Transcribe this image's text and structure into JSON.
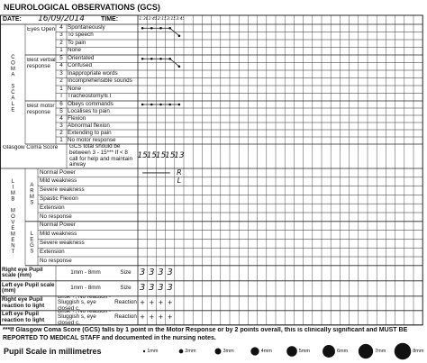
{
  "title": "NEUROLOGICAL OBSERVATIONS (GCS)",
  "date_label": "DATE:",
  "date": "16/09/2014",
  "time_label": "TIME:",
  "times": [
    "11:30",
    "11:45",
    "12:15",
    "13:15",
    "13:45"
  ],
  "coma_scale": {
    "label": "COMA SCALE",
    "groups": [
      {
        "label": "Eyes Open",
        "items": [
          {
            "score": "4",
            "text": "Spontaneously"
          },
          {
            "score": "3",
            "text": "To speech"
          },
          {
            "score": "2",
            "text": "To pain"
          },
          {
            "score": "1",
            "text": "None"
          }
        ],
        "observations": [
          4,
          4,
          4,
          4,
          3
        ]
      },
      {
        "label": "Best verbal response",
        "items": [
          {
            "score": "5",
            "text": "Orientated"
          },
          {
            "score": "4",
            "text": "Confused"
          },
          {
            "score": "3",
            "text": "Inappropriate words"
          },
          {
            "score": "2",
            "text": "Incomprehensible sounds"
          },
          {
            "score": "1",
            "text": "None"
          },
          {
            "score": "T",
            "text": "Tracheostomy/ET"
          }
        ],
        "observations": [
          5,
          5,
          5,
          5,
          4
        ]
      },
      {
        "label": "Best motor response",
        "items": [
          {
            "score": "6",
            "text": "Obeys commands"
          },
          {
            "score": "5",
            "text": "Localises to pain"
          },
          {
            "score": "4",
            "text": "Flexion"
          },
          {
            "score": "3",
            "text": "Abnormal flexion"
          },
          {
            "score": "2",
            "text": "Extending to pain"
          },
          {
            "score": "1",
            "text": "No motor response"
          }
        ],
        "observations": [
          6,
          6,
          6,
          6,
          6
        ]
      }
    ]
  },
  "gcs": {
    "label": "Glasgow Coma Score",
    "note": "GCS total should be between 3 - 15*** If < 8 call for help and maintain airway",
    "values": [
      "15",
      "15",
      "15",
      "15",
      "13"
    ]
  },
  "limb_movement": {
    "label": "LIMB MOVEMENT",
    "groups": [
      {
        "label": "ARMS",
        "items": [
          "Normal Power",
          "Mild weakness",
          "Severe weakness",
          "Spastic Flexion",
          "Extension",
          "No response"
        ],
        "notes": [
          "R",
          "L"
        ]
      },
      {
        "label": "LEGS",
        "items": [
          "Normal Power",
          "Mild weakness",
          "Severe weakness",
          "Extension",
          "No response"
        ]
      }
    ]
  },
  "pupils": [
    {
      "label": "Right eye Pupil scale (mm)",
      "range": "1mm - 8mm",
      "field": "Size",
      "values": [
        "3",
        "3",
        "3",
        "3"
      ]
    },
    {
      "label": "Left eye Pupil scale (mm)",
      "range": "1mm - 8mm",
      "field": "Size",
      "values": [
        "3",
        "3",
        "3",
        "3"
      ]
    },
    {
      "label": "Right eye Pupil reaction to light",
      "range": "Brisk +, No reaction - Sluggish s, eye closed c.",
      "field": "Reaction",
      "values": [
        "+",
        "+",
        "+",
        "+"
      ]
    },
    {
      "label": "Left eye Pupil reaction to light",
      "range": "Brisk +, No reaction - Sluggish s, eye closed c.",
      "field": "Reaction",
      "values": [
        "+",
        "+",
        "+",
        "+"
      ]
    }
  ],
  "footer": "***If Glasgow Coma Score (GCS) falls by 1 point in the Motor Response or by 2 points overall, this is clinically significant and MUST BE REPORTED TO MEDICAL STAFF and documented in the nursing notes.",
  "pupil_scale": {
    "title": "Pupil Scale in millimetres",
    "sizes": [
      "1mm",
      "2mm",
      "3mm",
      "4mm",
      "5mm",
      "6mm",
      "7mm",
      "8mm"
    ]
  }
}
